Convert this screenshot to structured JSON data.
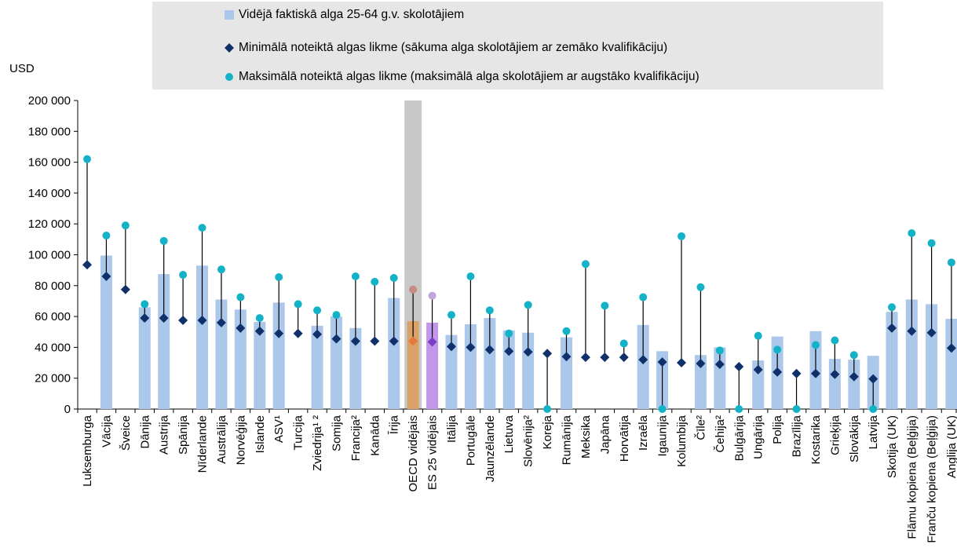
{
  "chart_data": {
    "type": "bar",
    "ylabel": "USD",
    "ylim": [
      0,
      200000
    ],
    "yticks": [
      0,
      20000,
      40000,
      60000,
      80000,
      100000,
      120000,
      140000,
      160000,
      180000,
      200000
    ],
    "ytick_labels": [
      "0",
      "20 000",
      "40 000",
      "60 000",
      "80 000",
      "100 000",
      "120 000",
      "140 000",
      "160 000",
      "180 000",
      "200 000"
    ],
    "legend_placement": "top",
    "legend": [
      "Vidējā faktiskā alga 25-64 g.v. skolotājiem",
      "Minimālā noteiktā algas likme (sākuma alga skolotājiem ar zemāko kvalifikāciju)",
      "Maksimālā noteiktā algas likme (maksimālā alga skolotājiem ar augstāko kvalifikāciju)"
    ],
    "colors": {
      "bar": "#abc8ea",
      "min_marker": "#10306a",
      "max_marker": "#14b2c7",
      "oecd_bar": "#d8a269",
      "oecd_min": "#e37b3a",
      "oecd_max": "#c98a82",
      "oecd_band": "#c8c8c8",
      "eu_bar": "#c296ea",
      "eu_min": "#7a3fc4",
      "eu_max": "#c2a5da"
    },
    "categories": [
      "Luksemburga",
      "Vācija",
      "Šveice",
      "Dānija",
      "Austrija",
      "Spānija",
      "Nīderlande",
      "Austrālija",
      "Norvēģija",
      "Islande",
      "ASV¹",
      "Turcija",
      "Zviedrija¹ ²",
      "Somija",
      "Francija²",
      "Kanāda",
      "Īrija",
      "OECD vidējais",
      "ES 25 vidējais",
      "Itālija",
      "Portugāle",
      "Jaunzēlande",
      "Lietuva",
      "Slovēnija²",
      "Koreja",
      "Rumānija",
      "Meksika",
      "Japāna",
      "Horvātija",
      "Izraēla",
      "Igaunija",
      "Kolumbija",
      "Čīle²",
      "Čehija²",
      "Bulgārija",
      "Ungārija",
      "Polija",
      "Brazīlija",
      "Kostarika",
      "Grieķija",
      "Slovākija",
      "Latvija",
      "Skotija (UK)",
      "Flāmu kopiena (Beļģija)",
      "Franču kopiena (Beļģija)",
      "Anglija (UK)"
    ],
    "series": [
      {
        "name": "Vidējā faktiskā alga 25-64 g.v. skolotājiem",
        "values": [
          null,
          99500,
          null,
          66000,
          87500,
          null,
          93000,
          71000,
          64500,
          56500,
          69000,
          null,
          54000,
          60000,
          52500,
          null,
          72000,
          57000,
          56000,
          48000,
          55000,
          59000,
          51000,
          49500,
          null,
          46500,
          null,
          null,
          null,
          54500,
          37500,
          null,
          35000,
          40000,
          null,
          31500,
          47000,
          null,
          50500,
          32500,
          32000,
          34500,
          63000,
          71000,
          68000,
          58500
        ]
      },
      {
        "name": "Minimālā noteiktā algas likme (sākuma alga skolotājiem ar zemāko kvalifikāciju)",
        "values": [
          93500,
          86000,
          77500,
          59000,
          59000,
          57500,
          57500,
          56000,
          52500,
          50500,
          49000,
          49000,
          48500,
          45500,
          44000,
          44000,
          44000,
          44000,
          43500,
          40500,
          40000,
          38500,
          37500,
          37000,
          36000,
          34000,
          33500,
          33500,
          33500,
          32000,
          30500,
          30000,
          29500,
          29000,
          27500,
          25500,
          24000,
          23000,
          23000,
          22500,
          21000,
          19500,
          52500,
          50500,
          49500,
          39500
        ]
      },
      {
        "name": "Maksimālā noteiktā algas likme (maksimālā alga skolotājiem ar augstāko kvalifikāciju)",
        "values": [
          162000,
          112500,
          119000,
          68000,
          109000,
          87000,
          117500,
          90500,
          72500,
          59000,
          85500,
          68000,
          64000,
          61000,
          86000,
          82500,
          85000,
          77500,
          73500,
          61000,
          86000,
          64000,
          49000,
          67500,
          0,
          50500,
          94000,
          67000,
          42500,
          72500,
          0,
          112000,
          79000,
          38000,
          0,
          47500,
          38500,
          0,
          41500,
          44500,
          35000,
          0,
          66000,
          114000,
          107500,
          95000
        ]
      }
    ]
  }
}
